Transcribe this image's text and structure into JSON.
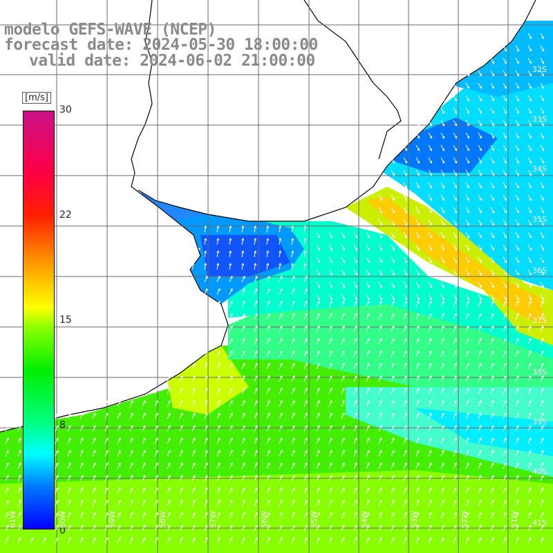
{
  "title": {
    "line1": "modelo GEFS-WAVE (NCEP)",
    "line2": "forecast date: 2024-05-30 18:00:00",
    "line3": "valid date: 2024-06-02 21:00:00"
  },
  "colorbar": {
    "unit": "[m/s]",
    "ticks": [
      {
        "label": "30",
        "value": 30
      },
      {
        "label": "22",
        "value": 22
      },
      {
        "label": "15",
        "value": 15
      },
      {
        "label": "8",
        "value": 8
      },
      {
        "label": "0",
        "value": 0
      }
    ]
  },
  "longitude_labels": [
    "61W",
    "60W",
    "59W",
    "58W",
    "57W",
    "56W",
    "55W",
    "54W",
    "53W",
    "52W",
    "51W"
  ],
  "latitude_labels": [
    "32S",
    "33S",
    "34S",
    "35S",
    "36S",
    "37S",
    "38S",
    "39S",
    "40S",
    "41S"
  ],
  "colors": {
    "land": "#ffffff",
    "coast": "#000000",
    "grid": "#6a6a6a",
    "arrows": "#ffffff",
    "title": "#8a8a8a"
  }
}
